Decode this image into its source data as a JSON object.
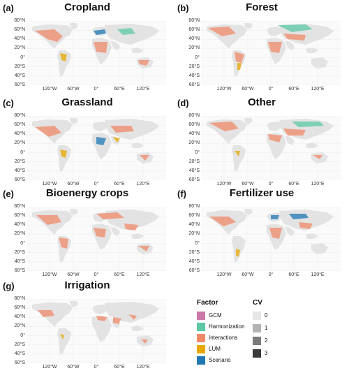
{
  "panels": [
    {
      "letter": "(a)",
      "title": "Cropland"
    },
    {
      "letter": "(b)",
      "title": "Forest"
    },
    {
      "letter": "(c)",
      "title": "Grassland"
    },
    {
      "letter": "(d)",
      "title": "Other"
    },
    {
      "letter": "(e)",
      "title": "Bioenergy crops"
    },
    {
      "letter": "(f)",
      "title": "Fertilizer use"
    },
    {
      "letter": "(g)",
      "title": "Irrigation"
    }
  ],
  "lat_ticks": [
    "80°N",
    "60°N",
    "40°N",
    "20°N",
    "0°",
    "20°S",
    "40°S",
    "60°S"
  ],
  "lon_ticks": [
    "120°W",
    "60°W",
    "0°",
    "60°E",
    "120°E"
  ],
  "legend": {
    "factor_title": "Factor",
    "factors": [
      {
        "label": "GCM",
        "color": "#cc79a7"
      },
      {
        "label": "Harmonization",
        "color": "#5bc8a6"
      },
      {
        "label": "Interactions",
        "color": "#f08a6a"
      },
      {
        "label": "LUM",
        "color": "#e6a800"
      },
      {
        "label": "Scenario",
        "color": "#1f77b4"
      }
    ],
    "cv_title": "CV",
    "cv": [
      {
        "label": "0",
        "color": "#e6e6e6"
      },
      {
        "label": "1",
        "color": "#b3b3b3"
      },
      {
        "label": "2",
        "color": "#7a7a7a"
      },
      {
        "label": "3",
        "color": "#3a3a3a"
      }
    ]
  },
  "chart_data": {
    "type": "heatmap",
    "lat_range": [
      "60°S",
      "80°N"
    ],
    "lon_range": [
      "180°W",
      "180°E"
    ]
  }
}
